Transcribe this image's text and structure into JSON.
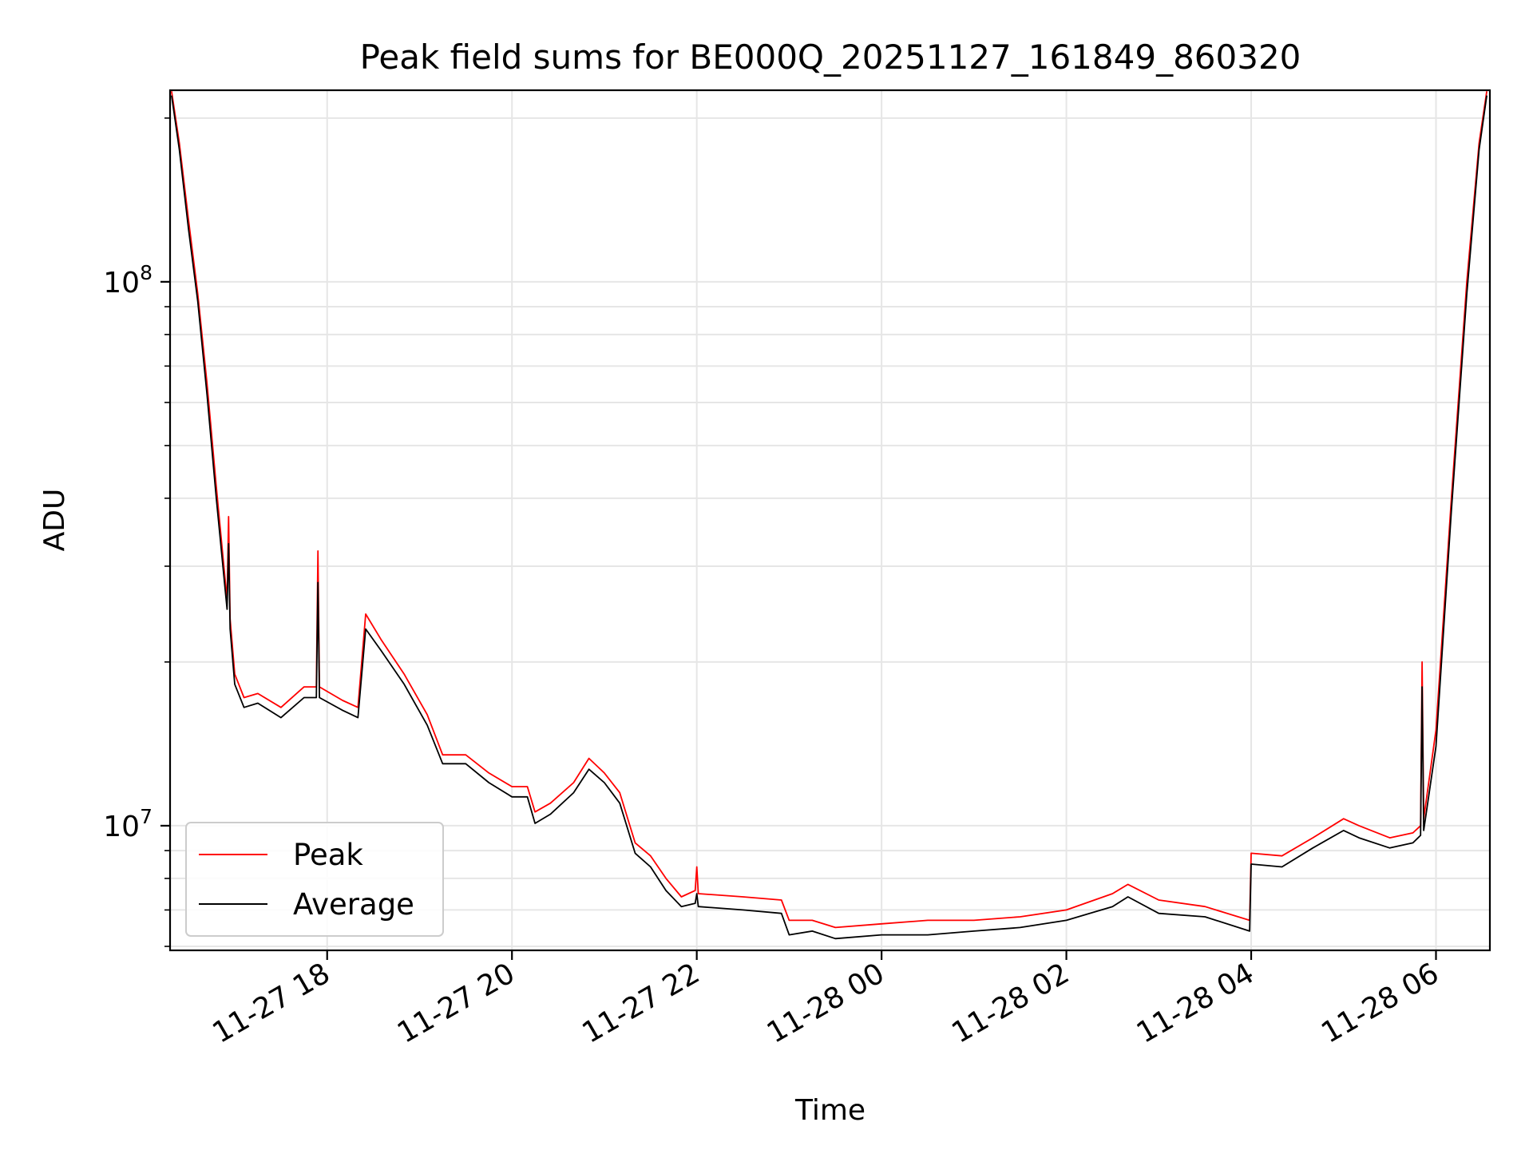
{
  "chart_data": {
    "type": "line",
    "title": "Peak field sums for BE000Q_20251127_161849_860320",
    "xlabel": "Time",
    "ylabel": "ADU",
    "yscale": "log",
    "xlim": [
      "2025-11-27 16:18",
      "2025-11-28 06:35"
    ],
    "ylim": [
      5900000,
      225000000
    ],
    "grid": true,
    "legend_position": "lower-left",
    "x_ticks": [
      "2025-11-27 18:00",
      "2025-11-27 20:00",
      "2025-11-27 22:00",
      "2025-11-28 00:00",
      "2025-11-28 02:00",
      "2025-11-28 04:00",
      "2025-11-28 06:00"
    ],
    "x_tick_labels": [
      "11-27 18",
      "11-27 20",
      "11-27 22",
      "11-28 00",
      "11-28 02",
      "11-28 04",
      "11-28 06"
    ],
    "y_major_ticks": [
      10000000,
      100000000
    ],
    "y_major_tick_labels": [
      {
        "base": "10",
        "exp": "7"
      },
      {
        "base": "10",
        "exp": "8"
      }
    ],
    "series": [
      {
        "name": "Peak",
        "color": "#ff0000",
        "x": [
          "2025-11-27 16:19",
          "2025-11-27 16:24",
          "2025-11-27 16:30",
          "2025-11-27 16:36",
          "2025-11-27 16:42",
          "2025-11-27 16:48",
          "2025-11-27 16:55",
          "2025-11-27 16:56",
          "2025-11-27 16:57",
          "2025-11-27 17:00",
          "2025-11-27 17:06",
          "2025-11-27 17:15",
          "2025-11-27 17:30",
          "2025-11-27 17:45",
          "2025-11-27 17:53",
          "2025-11-27 17:54",
          "2025-11-27 17:55",
          "2025-11-27 18:10",
          "2025-11-27 18:20",
          "2025-11-27 18:25",
          "2025-11-27 18:35",
          "2025-11-27 18:50",
          "2025-11-27 19:05",
          "2025-11-27 19:15",
          "2025-11-27 19:30",
          "2025-11-27 19:45",
          "2025-11-27 20:00",
          "2025-11-27 20:10",
          "2025-11-27 20:15",
          "2025-11-27 20:25",
          "2025-11-27 20:40",
          "2025-11-27 20:50",
          "2025-11-27 21:00",
          "2025-11-27 21:10",
          "2025-11-27 21:20",
          "2025-11-27 21:30",
          "2025-11-27 21:40",
          "2025-11-27 21:50",
          "2025-11-27 21:59",
          "2025-11-27 22:00",
          "2025-11-27 22:01",
          "2025-11-27 22:30",
          "2025-11-27 22:55",
          "2025-11-27 23:00",
          "2025-11-27 23:15",
          "2025-11-27 23:30",
          "2025-11-28 00:00",
          "2025-11-28 00:30",
          "2025-11-28 01:00",
          "2025-11-28 01:30",
          "2025-11-28 02:00",
          "2025-11-28 02:30",
          "2025-11-28 02:40",
          "2025-11-28 03:00",
          "2025-11-28 03:30",
          "2025-11-28 03:59",
          "2025-11-28 04:00",
          "2025-11-28 04:20",
          "2025-11-28 04:40",
          "2025-11-28 05:00",
          "2025-11-28 05:10",
          "2025-11-28 05:30",
          "2025-11-28 05:45",
          "2025-11-28 05:50",
          "2025-11-28 05:51",
          "2025-11-28 05:52",
          "2025-11-28 06:00",
          "2025-11-28 06:10",
          "2025-11-28 06:20",
          "2025-11-28 06:28",
          "2025-11-28 06:33"
        ],
        "values": [
          224000000,
          180000000,
          130000000,
          95000000,
          65000000,
          42000000,
          26000000,
          37000000,
          24000000,
          19000000,
          17200000,
          17500000,
          16500000,
          18000000,
          18000000,
          32000000,
          18000000,
          17000000,
          16500000,
          24500000,
          22000000,
          19000000,
          16000000,
          13500000,
          13500000,
          12500000,
          11800000,
          11800000,
          10600000,
          11000000,
          12000000,
          13300000,
          12500000,
          11500000,
          9300000,
          8800000,
          8000000,
          7400000,
          7600000,
          8400000,
          7500000,
          7400000,
          7300000,
          6700000,
          6700000,
          6500000,
          6600000,
          6700000,
          6700000,
          6800000,
          7000000,
          7500000,
          7800000,
          7300000,
          7100000,
          6700000,
          8900000,
          8800000,
          9500000,
          10300000,
          10000000,
          9500000,
          9700000,
          10000000,
          20000000,
          10300000,
          15000000,
          40000000,
          100000000,
          180000000,
          224000000
        ]
      },
      {
        "name": "Average",
        "color": "#000000",
        "x": [
          "2025-11-27 16:19",
          "2025-11-27 16:24",
          "2025-11-27 16:30",
          "2025-11-27 16:36",
          "2025-11-27 16:42",
          "2025-11-27 16:48",
          "2025-11-27 16:55",
          "2025-11-27 16:56",
          "2025-11-27 16:57",
          "2025-11-27 17:00",
          "2025-11-27 17:06",
          "2025-11-27 17:15",
          "2025-11-27 17:30",
          "2025-11-27 17:45",
          "2025-11-27 17:53",
          "2025-11-27 17:54",
          "2025-11-27 17:55",
          "2025-11-27 18:10",
          "2025-11-27 18:20",
          "2025-11-27 18:25",
          "2025-11-27 18:35",
          "2025-11-27 18:50",
          "2025-11-27 19:05",
          "2025-11-27 19:15",
          "2025-11-27 19:30",
          "2025-11-27 19:45",
          "2025-11-27 20:00",
          "2025-11-27 20:10",
          "2025-11-27 20:15",
          "2025-11-27 20:25",
          "2025-11-27 20:40",
          "2025-11-27 20:50",
          "2025-11-27 21:00",
          "2025-11-27 21:10",
          "2025-11-27 21:20",
          "2025-11-27 21:30",
          "2025-11-27 21:40",
          "2025-11-27 21:50",
          "2025-11-27 21:59",
          "2025-11-27 22:00",
          "2025-11-27 22:01",
          "2025-11-27 22:30",
          "2025-11-27 22:55",
          "2025-11-27 23:00",
          "2025-11-27 23:15",
          "2025-11-27 23:30",
          "2025-11-28 00:00",
          "2025-11-28 00:30",
          "2025-11-28 01:00",
          "2025-11-28 01:30",
          "2025-11-28 02:00",
          "2025-11-28 02:30",
          "2025-11-28 02:40",
          "2025-11-28 03:00",
          "2025-11-28 03:30",
          "2025-11-28 03:59",
          "2025-11-28 04:00",
          "2025-11-28 04:20",
          "2025-11-28 04:40",
          "2025-11-28 05:00",
          "2025-11-28 05:10",
          "2025-11-28 05:30",
          "2025-11-28 05:45",
          "2025-11-28 05:50",
          "2025-11-28 05:51",
          "2025-11-28 05:52",
          "2025-11-28 06:00",
          "2025-11-28 06:10",
          "2025-11-28 06:20",
          "2025-11-28 06:28",
          "2025-11-28 06:33"
        ],
        "values": [
          220000000,
          175000000,
          125000000,
          92000000,
          62000000,
          40000000,
          25000000,
          33000000,
          23000000,
          18200000,
          16500000,
          16800000,
          15800000,
          17200000,
          17200000,
          28000000,
          17200000,
          16300000,
          15800000,
          23000000,
          21000000,
          18200000,
          15300000,
          13000000,
          13000000,
          12000000,
          11300000,
          11300000,
          10100000,
          10500000,
          11500000,
          12700000,
          12000000,
          11000000,
          8900000,
          8400000,
          7600000,
          7100000,
          7200000,
          7500000,
          7100000,
          7000000,
          6900000,
          6300000,
          6400000,
          6200000,
          6300000,
          6300000,
          6400000,
          6500000,
          6700000,
          7100000,
          7400000,
          6900000,
          6800000,
          6400000,
          8500000,
          8400000,
          9100000,
          9800000,
          9500000,
          9100000,
          9300000,
          9600000,
          18000000,
          9800000,
          14000000,
          38000000,
          95000000,
          175000000,
          220000000
        ]
      }
    ]
  }
}
